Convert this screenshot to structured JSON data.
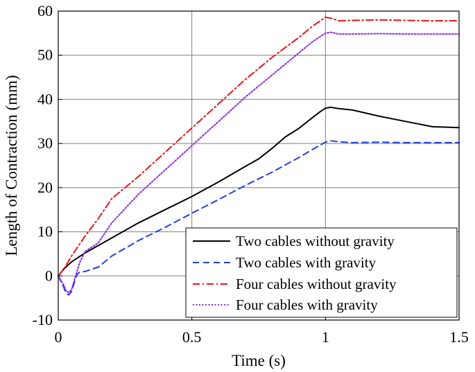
{
  "chart_data": {
    "type": "line",
    "title": "",
    "xlabel": "Time (s)",
    "ylabel": "Length of Contraction (mm)",
    "xlim": [
      0,
      1.5
    ],
    "ylim": [
      -10,
      60
    ],
    "xticks": [
      0,
      0.5,
      1,
      1.5
    ],
    "xtick_labels": [
      "0",
      "0.5",
      "1",
      "1.5"
    ],
    "yticks": [
      -10,
      0,
      10,
      20,
      30,
      40,
      50,
      60
    ],
    "ytick_labels": [
      "-10",
      "0",
      "10",
      "20",
      "30",
      "40",
      "50",
      "60"
    ],
    "grid": true,
    "legend_position": "bottom-right",
    "series": [
      {
        "name": "Two cables without gravity",
        "color": "#000000",
        "dash": "solid",
        "x": [
          0,
          0.02,
          0.05,
          0.1,
          0.2,
          0.3,
          0.4,
          0.5,
          0.6,
          0.7,
          0.75,
          0.8,
          0.85,
          0.9,
          0.95,
          0.98,
          1.0,
          1.02,
          1.05,
          1.1,
          1.2,
          1.3,
          1.4,
          1.5
        ],
        "y": [
          0,
          1.5,
          3.2,
          5.2,
          8.6,
          12.0,
          15.0,
          18.0,
          21.3,
          24.8,
          26.5,
          28.9,
          31.5,
          33.4,
          35.8,
          37.2,
          38.0,
          38.2,
          37.9,
          37.6,
          36.2,
          35.0,
          33.8,
          33.6
        ]
      },
      {
        "name": "Two cables with gravity",
        "color": "#1f3fe6",
        "dash": "dashed",
        "x": [
          0,
          0.02,
          0.03,
          0.04,
          0.05,
          0.06,
          0.07,
          0.08,
          0.1,
          0.15,
          0.2,
          0.3,
          0.4,
          0.5,
          0.6,
          0.7,
          0.8,
          0.9,
          0.95,
          1.0,
          1.02,
          1.05,
          1.1,
          1.2,
          1.3,
          1.4,
          1.5
        ],
        "y": [
          0,
          -2.5,
          -4.0,
          -4.3,
          -3.5,
          -1.5,
          0.3,
          0.9,
          1.0,
          2.0,
          4.5,
          8.0,
          11.0,
          14.2,
          17.3,
          20.5,
          23.5,
          26.8,
          28.6,
          30.3,
          30.6,
          30.4,
          30.2,
          30.3,
          30.2,
          30.2,
          30.2
        ]
      },
      {
        "name": "Four cables without gravity",
        "color": "#e6141c",
        "dash": "dashdot",
        "x": [
          0,
          0.02,
          0.05,
          0.1,
          0.15,
          0.2,
          0.3,
          0.4,
          0.5,
          0.6,
          0.7,
          0.8,
          0.9,
          0.95,
          1.0,
          1.02,
          1.05,
          1.1,
          1.2,
          1.3,
          1.4,
          1.5
        ],
        "y": [
          0,
          1.5,
          4.5,
          9.0,
          13.0,
          17.5,
          22.5,
          28.0,
          33.5,
          39.0,
          44.5,
          49.5,
          54.0,
          56.5,
          58.6,
          58.4,
          57.8,
          57.9,
          58.0,
          57.9,
          57.8,
          57.8
        ]
      },
      {
        "name": "Four cables with gravity",
        "color": "#8a2be2",
        "dash": "dotted",
        "x": [
          0,
          0.02,
          0.03,
          0.04,
          0.05,
          0.06,
          0.08,
          0.1,
          0.15,
          0.2,
          0.3,
          0.4,
          0.5,
          0.6,
          0.7,
          0.8,
          0.9,
          0.95,
          1.0,
          1.02,
          1.05,
          1.1,
          1.2,
          1.3,
          1.4,
          1.5
        ],
        "y": [
          0,
          -2.0,
          -3.5,
          -3.8,
          -3.0,
          -1.0,
          3.0,
          5.5,
          7.5,
          12.0,
          18.5,
          24.0,
          29.5,
          35.0,
          40.5,
          45.5,
          50.5,
          53.0,
          55.0,
          55.2,
          54.8,
          54.8,
          54.9,
          54.8,
          54.8,
          54.8
        ]
      }
    ]
  }
}
